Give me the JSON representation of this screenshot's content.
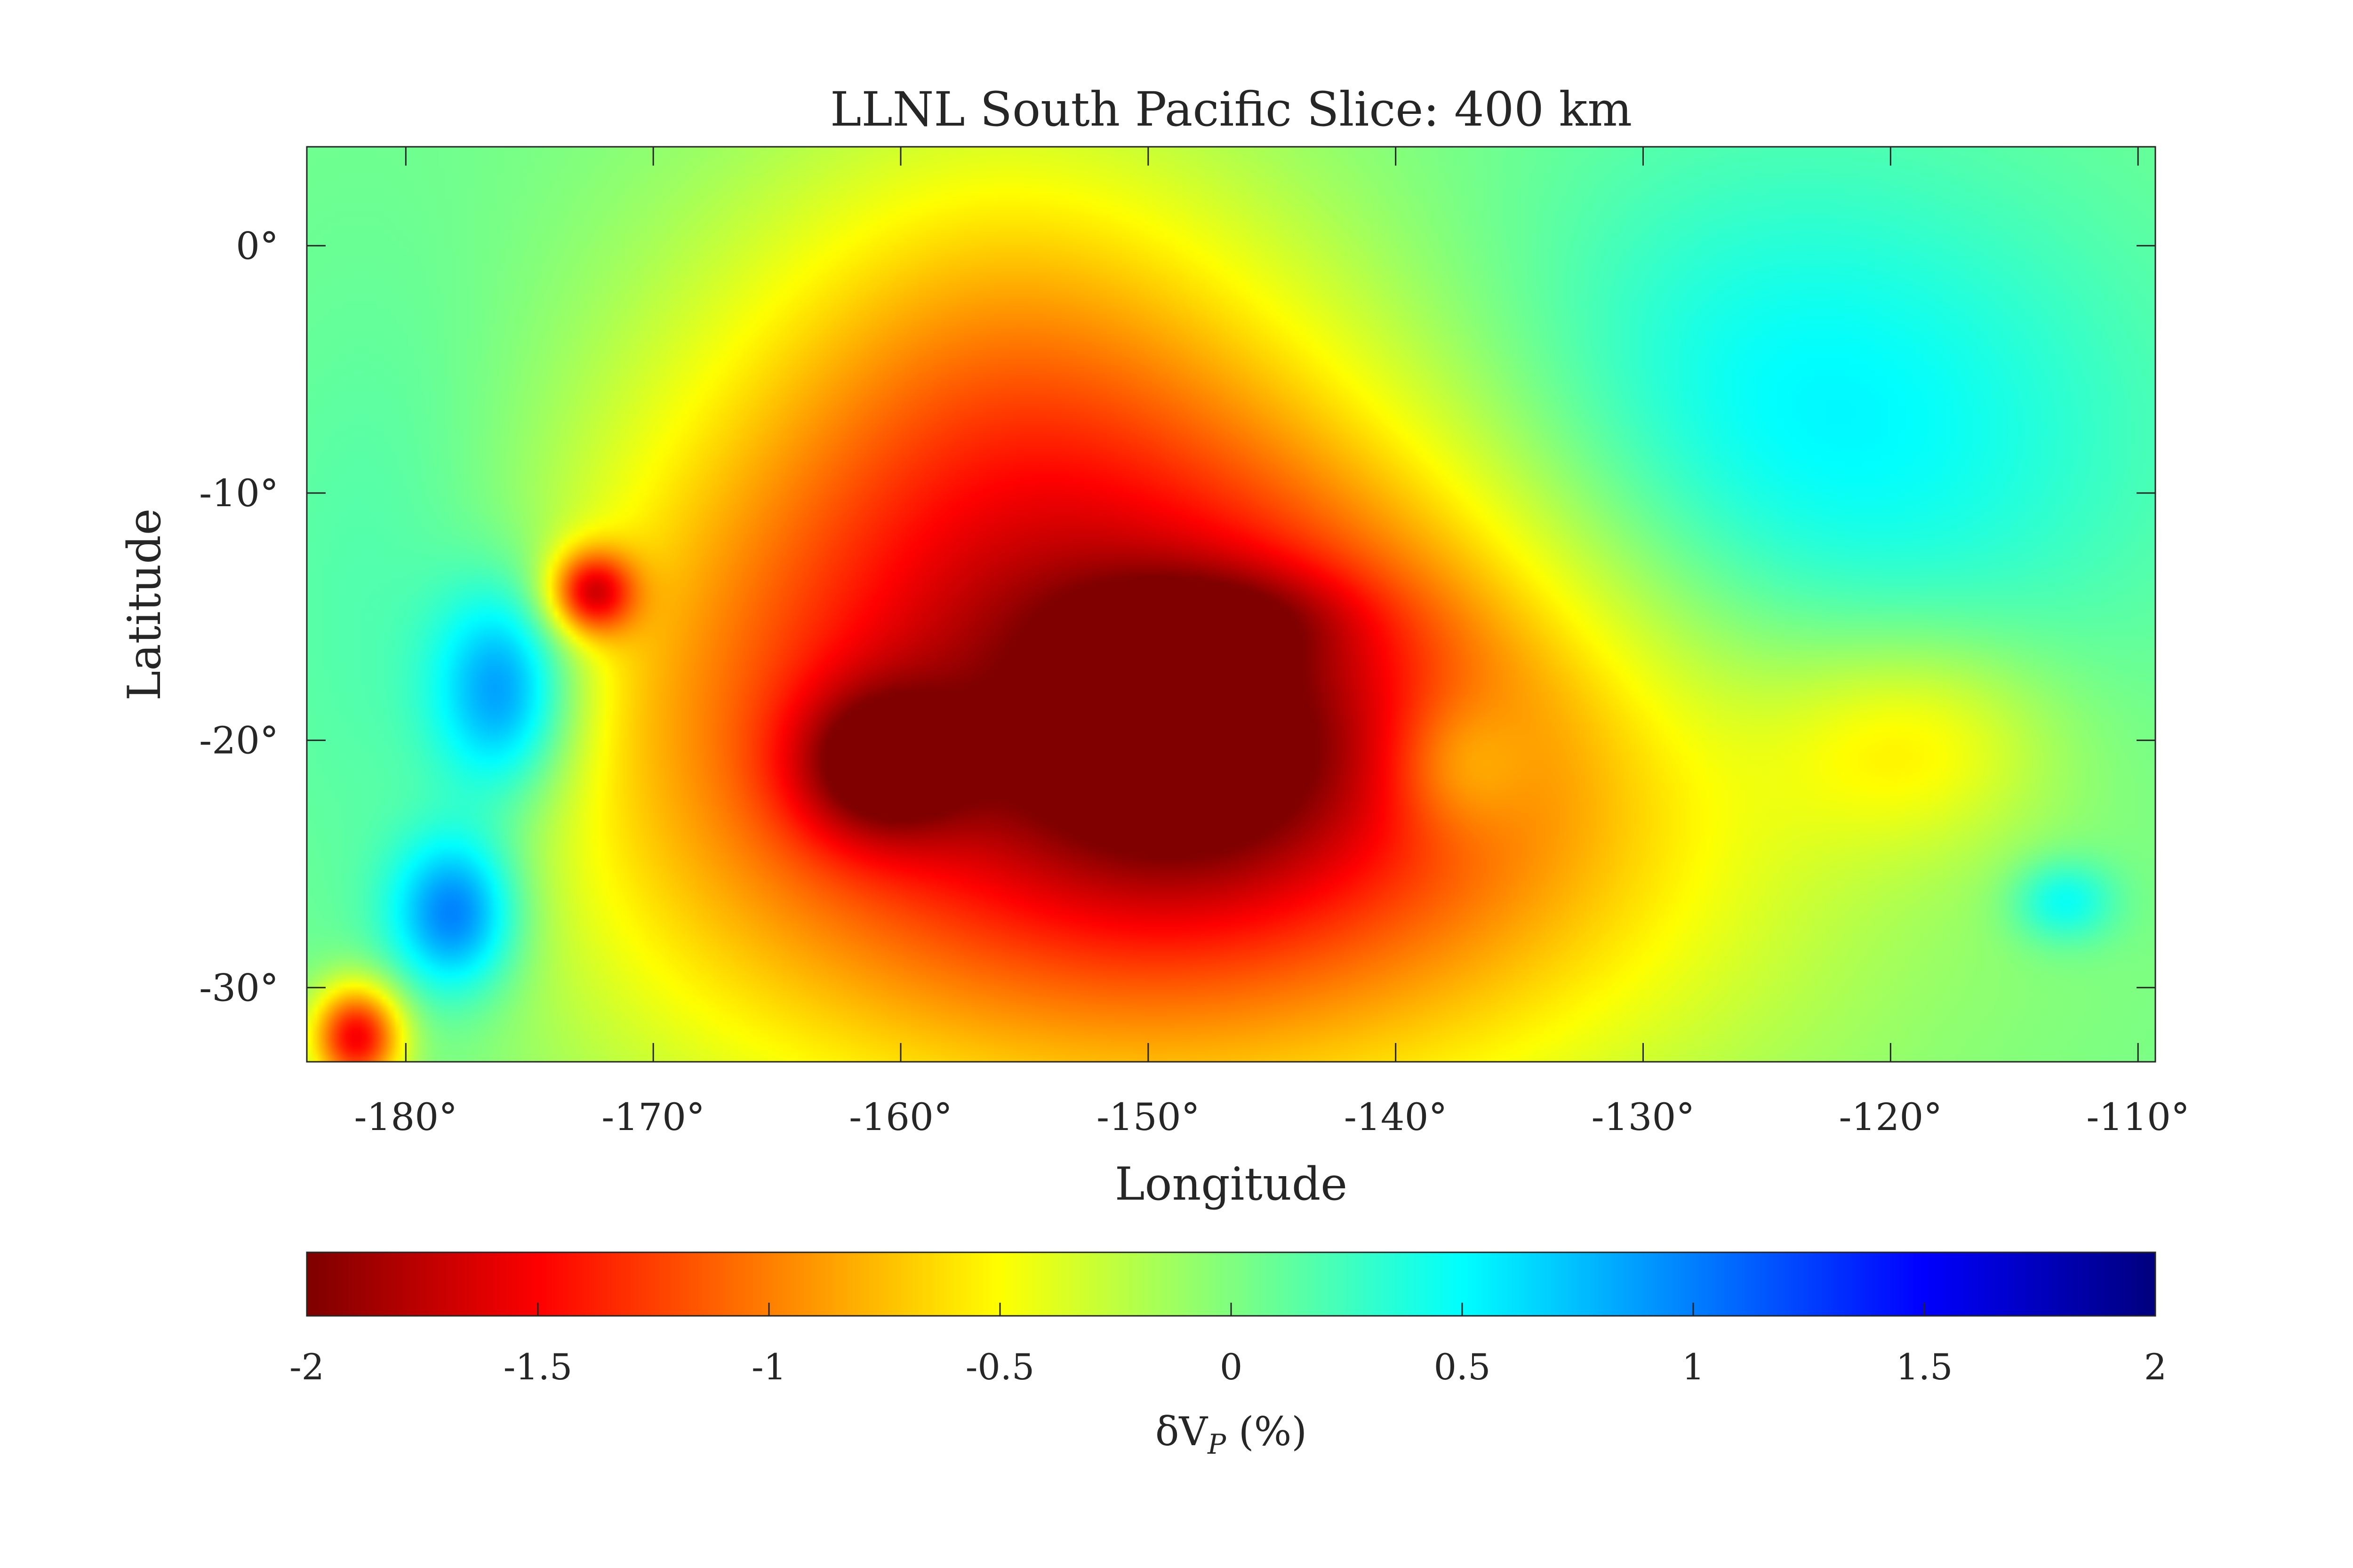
{
  "chart_data": {
    "type": "heatmap",
    "title": "LLNL South Pacific Slice: 400 km",
    "xlabel": "Longitude",
    "ylabel": "Latitude",
    "xlim": [
      -184,
      -109.3
    ],
    "ylim": [
      -33,
      4
    ],
    "xticks": [
      -180,
      -170,
      -160,
      -150,
      -140,
      -130,
      -120,
      -110
    ],
    "xtick_labels": [
      "-180°",
      "-170°",
      "-160°",
      "-150°",
      "-140°",
      "-130°",
      "-120°",
      "-110°"
    ],
    "yticks": [
      0,
      -10,
      -20,
      -30
    ],
    "ytick_labels": [
      "0°",
      "-10°",
      "-20°",
      "-30°"
    ],
    "colorbar": {
      "label_main": "δV",
      "label_sub": "P",
      "label_tail": " (%)",
      "range": [
        -2,
        2
      ],
      "ticks": [
        -2,
        -1.5,
        -1,
        -0.5,
        0,
        0.5,
        1,
        1.5,
        2
      ],
      "tick_labels": [
        "-2",
        "-1.5",
        "-1",
        "-0.5",
        "0",
        "0.5",
        "1",
        "1.5",
        "2"
      ],
      "colormap": "jet-reversed",
      "placement": "bottom"
    },
    "grid": false,
    "features": [
      {
        "lon": -150,
        "lat": -20,
        "sx": 16,
        "sy": 10,
        "value": -1.9
      },
      {
        "lon": -148.5,
        "lat": -20.5,
        "sx": 5,
        "sy": 4,
        "value": -0.6
      },
      {
        "lon": -161,
        "lat": -21,
        "sx": 2.5,
        "sy": 2.2,
        "value": -0.9
      },
      {
        "lon": -147,
        "lat": -15,
        "sx": 4,
        "sy": 1.5,
        "value": -0.4
      },
      {
        "lon": -156,
        "lat": -5,
        "sx": 8,
        "sy": 8,
        "value": -0.6
      },
      {
        "lon": -172.5,
        "lat": -14,
        "sx": 1.2,
        "sy": 1.2,
        "value": -1.3
      },
      {
        "lon": -182,
        "lat": -32,
        "sx": 1.3,
        "sy": 1.5,
        "value": -1.6
      },
      {
        "lon": -176,
        "lat": -18,
        "sx": 2,
        "sy": 3,
        "value": 1.0
      },
      {
        "lon": -178,
        "lat": -27,
        "sx": 1.8,
        "sy": 2.2,
        "value": 1.0
      },
      {
        "lon": -180,
        "lat": -18,
        "sx": 5,
        "sy": 10,
        "value": 0.4
      },
      {
        "lon": -125,
        "lat": -9,
        "sx": 10,
        "sy": 8,
        "value": 0.7
      },
      {
        "lon": -137.5,
        "lat": -21,
        "sx": 2,
        "sy": 2,
        "value": 0.4
      },
      {
        "lon": -119,
        "lat": -20,
        "sx": 4,
        "sy": 3,
        "value": -0.5
      },
      {
        "lon": -113,
        "lat": -26.5,
        "sx": 1.5,
        "sy": 1.2,
        "value": 0.5
      }
    ]
  }
}
